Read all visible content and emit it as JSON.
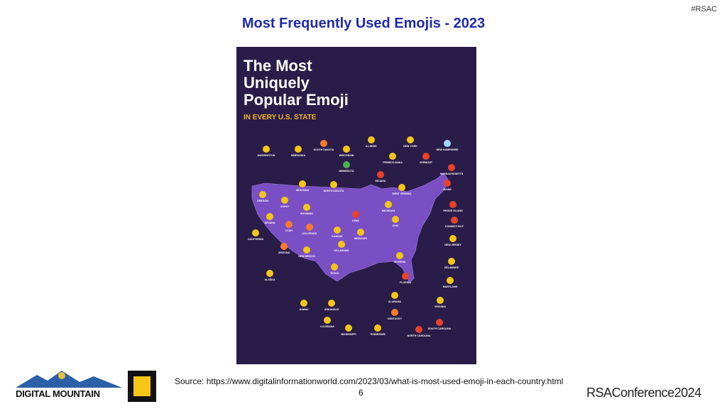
{
  "header": {
    "tag": "#RSAC",
    "title": "Most Frequently Used Emojis - 2023"
  },
  "infographic": {
    "title_lines": [
      "The Most",
      "Uniquely",
      "Popular Emoji"
    ],
    "subtitle": "IN EVERY U.S. STATE",
    "states": [
      "WASHINGTON",
      "NEBRASKA",
      "SOUTH DAKOTA",
      "WISCONSIN",
      "ILLINOIS",
      "NEW YORK",
      "NEW HAMPSHIRE",
      "PENNSYLVANIA",
      "VERMONT",
      "MINNESOTA",
      "MASSACHUSETTS",
      "INDIANA",
      "MONTANA",
      "NORTH DAKOTA",
      "MAINE",
      "WEST VIRGINIA",
      "OREGON",
      "IDAHO",
      "WYOMING",
      "MICHIGAN",
      "RHODE ISLAND",
      "IOWA",
      "NEVADA",
      "UTAH",
      "COLORADO",
      "KANSAS",
      "MISSOURI",
      "OHIO",
      "CONNECTICUT",
      "CALIFORNIA",
      "NEW JERSEY",
      "ARIZONA",
      "NEW MEXICO",
      "OKLAHOMA",
      "GEORGIA",
      "DELAWARE",
      "TEXAS",
      "ALASKA",
      "FLORIDA",
      "MARYLAND",
      "ALABAMA",
      "HAWAII",
      "ARKANSAS",
      "VIRGINIA",
      "KENTUCKY",
      "LOUISIANA",
      "SOUTH CAROLINA",
      "MISSISSIPPI",
      "TENNESSEE",
      "NORTH CAROLINA"
    ]
  },
  "footer": {
    "source": "Source: https://www.digitalinformationworld.com/2023/03/what-is-most-used-emoji-in-each-country.html",
    "page": "6",
    "logo_left": "DIGITAL MOUNTAIN",
    "logo_right": "RSAConference2024"
  }
}
